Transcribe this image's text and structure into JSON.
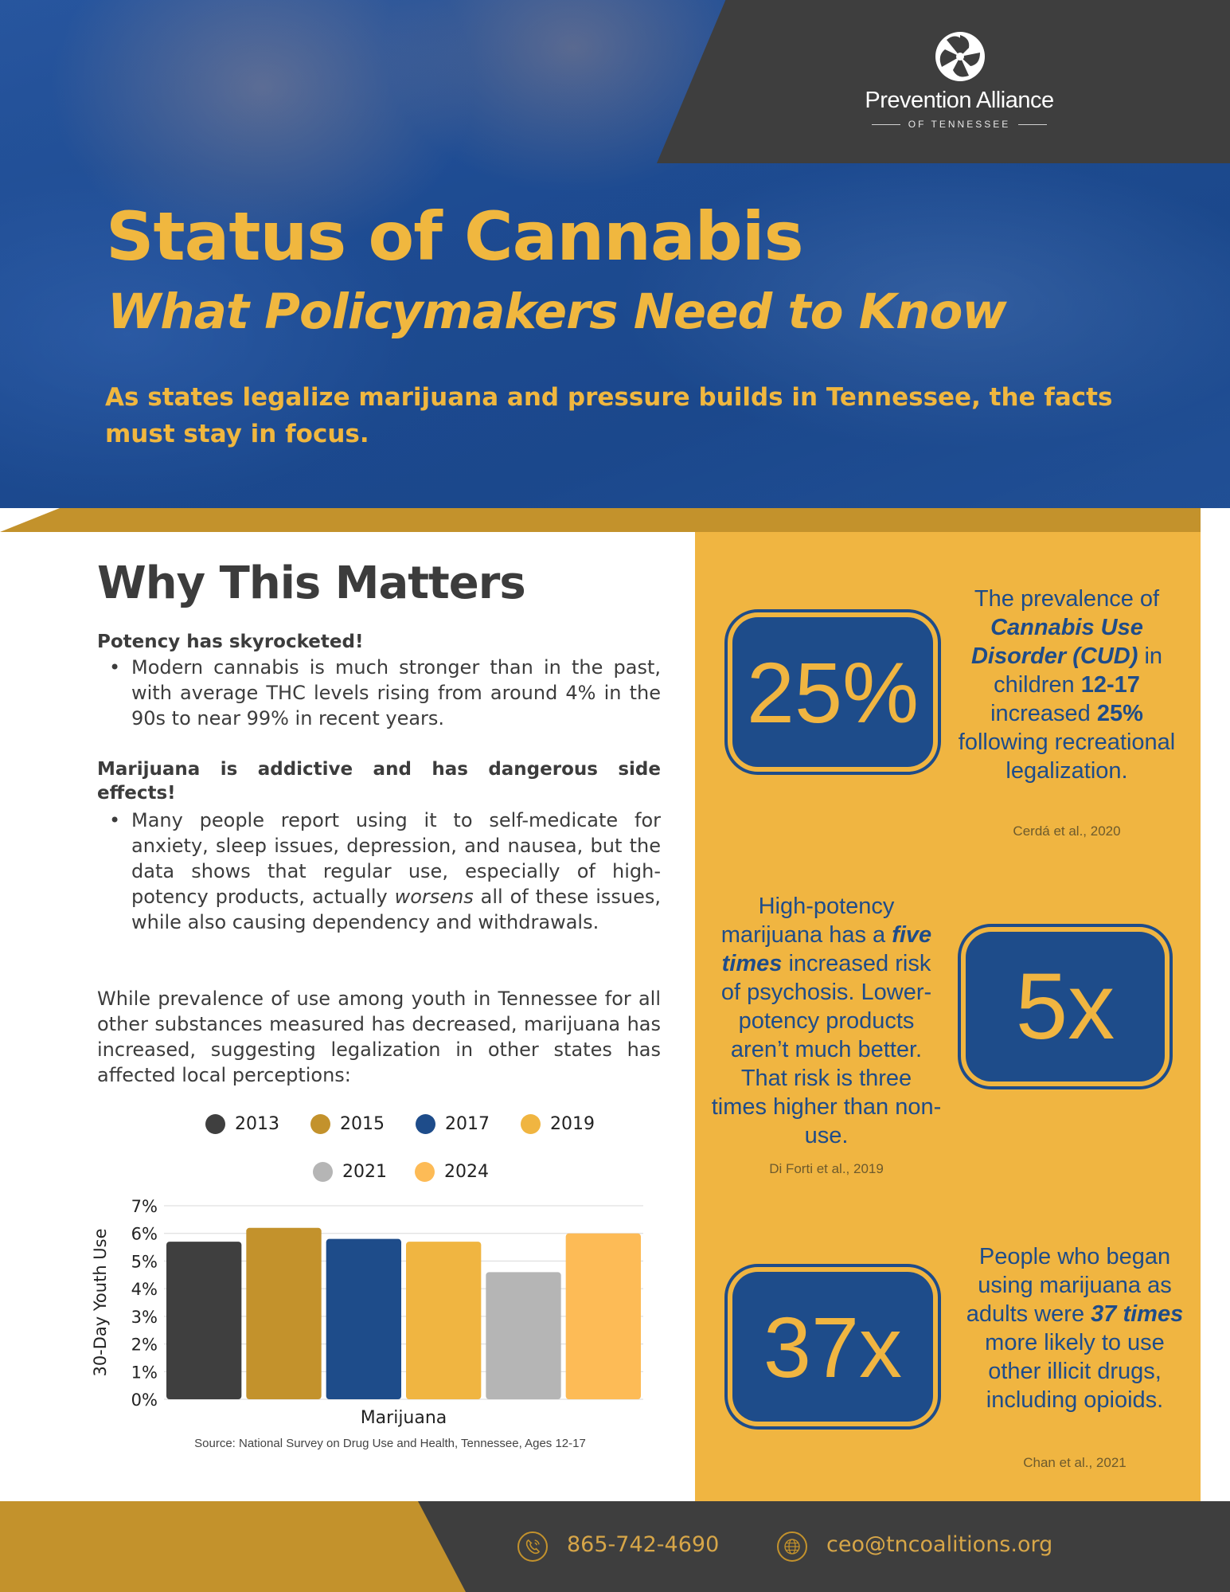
{
  "brand": {
    "name": "Prevention Alliance",
    "sub": "OF TENNESSEE",
    "logo_icon": "pinwheel-logo-icon"
  },
  "hero": {
    "title": "Status of Cannabis",
    "subtitle": "What Policymakers Need to Know",
    "lede": "As states legalize marijuana and pressure builds in Tennessee, the facts must stay in focus."
  },
  "section": {
    "title": "Why This Matters",
    "potency_head": "Potency has skyrocketed!",
    "potency_bullet": "Modern cannabis is much stronger than in the past, with average THC levels rising from around 4% in the 90s to near 99% in recent years.",
    "addictive_head": "Marijuana is addictive and has dangerous side effects!",
    "addictive_bullet_a": "Many people report using it to self-medicate for anxiety, sleep issues, depression, and nausea, but the data shows that regular use, especially of high-potency products, actually ",
    "addictive_bullet_em": "worsens",
    "addictive_bullet_b": " all of these issues, while also causing dependency and withdrawals.",
    "prevalence_para": "While prevalence of use among youth in Tennessee for all other substances measured has decreased, marijuana has increased, suggesting legalization in other states has affected local perceptions:"
  },
  "stats": [
    {
      "value": "25%",
      "text_parts": [
        "The prevalence of ",
        "Cannabis Use Disorder (CUD)",
        " in children ",
        "12-17",
        " increased ",
        "25%",
        " following recreational legalization."
      ],
      "cite": "Cerdá et al., 2020"
    },
    {
      "value": "5x",
      "text_parts": [
        "High-potency marijuana has a ",
        "five times",
        " increased risk of psychosis. Lower-potency products aren’t much better. That risk is three times higher than non-use."
      ],
      "cite": "Di Forti et al., 2019"
    },
    {
      "value": "37x",
      "text_parts": [
        "People who began using marijuana as adults were ",
        "37 times",
        " more likely to use other illicit drugs, including opioids."
      ],
      "cite": "Chan et al., 2021"
    }
  ],
  "chart_data": {
    "type": "bar",
    "categories": [
      "Marijuana"
    ],
    "series": [
      {
        "name": "2013",
        "values": [
          5.7
        ],
        "color": "#3f3f3f"
      },
      {
        "name": "2015",
        "values": [
          6.2
        ],
        "color": "#c3922c"
      },
      {
        "name": "2017",
        "values": [
          5.8
        ],
        "color": "#1e4c8a"
      },
      {
        "name": "2019",
        "values": [
          5.7
        ],
        "color": "#f0b541"
      },
      {
        "name": "2021",
        "values": [
          4.6
        ],
        "color": "#b5b5b5"
      },
      {
        "name": "2024",
        "values": [
          6.0
        ],
        "color": "#fdbb56"
      }
    ],
    "ylabel": "30-Day Youth Use",
    "xlabel": "Marijuana",
    "ylim": [
      0,
      7
    ],
    "yticks": [
      "0%",
      "1%",
      "2%",
      "3%",
      "4%",
      "5%",
      "6%",
      "7%"
    ],
    "grid": true,
    "legend": "top",
    "source": "Source: National Survey on Drug Use and Health, Tennessee, Ages 12-17"
  },
  "footer": {
    "phone": "865-742-4690",
    "email": "ceo@tncoalitions.org",
    "phone_icon": "phone-icon",
    "email_icon": "globe-icon"
  }
}
